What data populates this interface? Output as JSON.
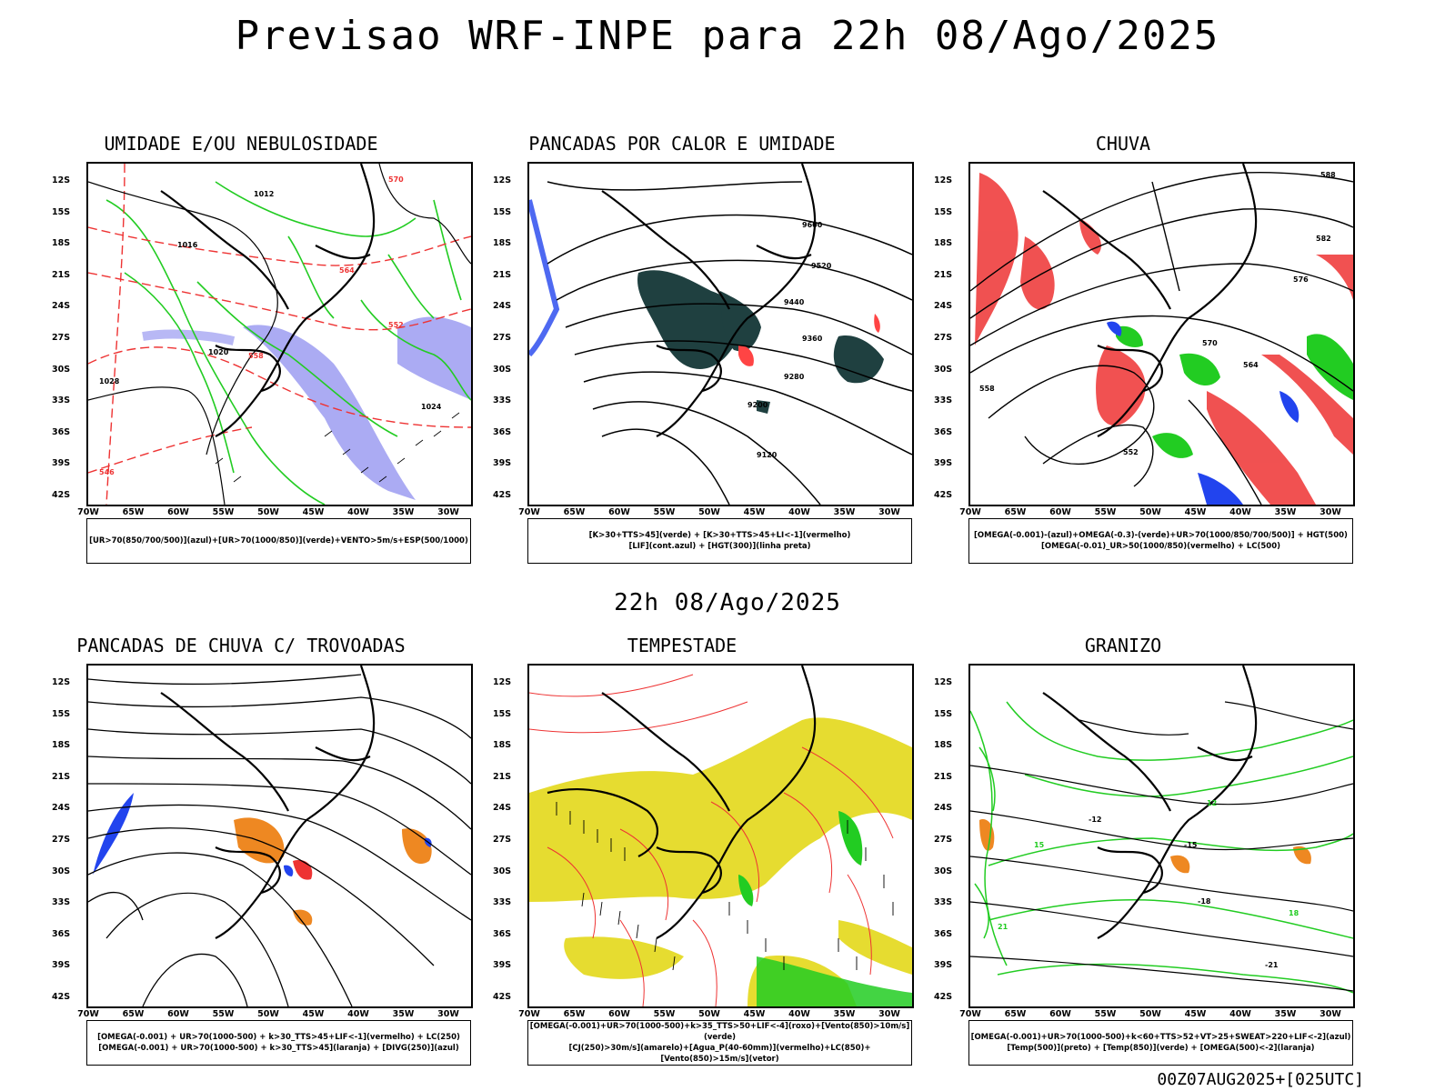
{
  "title": "Previsao WRF-INPE  para 22h 08/Ago/2025",
  "mid_title": "22h 08/Ago/2025",
  "footer": "00Z07AUG2025+[025UTC]",
  "axes": {
    "lat_labels": [
      "12S",
      "15S",
      "18S",
      "21S",
      "24S",
      "27S",
      "30S",
      "33S",
      "36S",
      "39S",
      "42S"
    ],
    "lon_labels": [
      "70W",
      "65W",
      "60W",
      "55W",
      "50W",
      "45W",
      "40W",
      "35W",
      "30W"
    ]
  },
  "panels": [
    {
      "title": "UMIDADE E/OU NEBULOSIDADE",
      "caption": [
        "[UR>70(850/700/500)](azul)+[UR>70(1000/850)](verde)+VENTO>5m/s+ESP(500/1000)"
      ],
      "contour_labels": [
        "1012",
        "1016",
        "1020",
        "1024",
        "1028",
        "570",
        "564",
        "558",
        "552",
        "546"
      ],
      "colors": {
        "fill": "#8888ee",
        "line": "#22cc22",
        "thickness": "#ee3333"
      }
    },
    {
      "title": "PANCADAS POR CALOR E UMIDADE",
      "caption": [
        "[K>30+TTS>45](verde) + [K>30+TTS>45+LI<-1](vermelho)",
        "[LIF](cont.azul) + [HGT(300)](linha preta)"
      ],
      "contour_labels": [
        "9600",
        "9520",
        "9440",
        "9360",
        "9280",
        "9200",
        "9120"
      ],
      "colors": {
        "fill": "#1f4040",
        "alert": "#ff4444",
        "line": "#2244ee"
      }
    },
    {
      "title": "CHUVA",
      "caption": [
        "[OMEGA(-0.001)-(azul)+OMEGA(-0.3)-(verde)+UR>70(1000/850/700/500)] + HGT(500)",
        "[OMEGA(-0.01)_UR>50(1000/850)(vermelho) + LC(500)"
      ],
      "contour_labels": [
        "588",
        "582",
        "576",
        "570",
        "564",
        "558",
        "552"
      ],
      "colors": {
        "red": "#ee3333",
        "green": "#22cc22",
        "blue": "#2244ee"
      }
    },
    {
      "title": "PANCADAS DE CHUVA C/ TROVOADAS",
      "caption": [
        "[OMEGA(-0.001) + UR>70(1000-500) + k>30_TTS>45+LIF<-1](vermelho) + LC(250)",
        "[OMEGA(-0.001) + UR>70(1000-500) + k>30_TTS>45](laranja) + [DIVG(250)](azul)"
      ],
      "contour_labels": [],
      "colors": {
        "orange": "#ee8822",
        "red": "#ee3333",
        "blue": "#2244ee"
      }
    },
    {
      "title": "TEMPESTADE",
      "caption": [
        "[OMEGA(-0.001)+UR>70(1000-500)+k>35_TTS>50+LIF<-4](roxo)+[Vento(850)>10m/s](verde)",
        "[CJ(250)>30m/s](amarelo)+[Agua_P(40-60mm)](vermelho)+LC(850)+[Vento(850)>15m/s](vetor)"
      ],
      "contour_labels": [],
      "colors": {
        "yellow": "#e6dc30",
        "green": "#22cc22",
        "red": "#ee3333"
      }
    },
    {
      "title": "GRANIZO",
      "caption": [
        "[OMEGA(-0.001)+UR>70(1000-500)+k<60+TTS>52+VT>25+SWEAT>220+LIF<-2](azul)",
        "[Temp(500)](preto) + [Temp(850)](verde) + [OMEGA(500)<-2](laranja)"
      ],
      "contour_labels": [
        "-12",
        "-15",
        "-18",
        "-21",
        "12",
        "15",
        "18",
        "21"
      ],
      "colors": {
        "green": "#22cc22",
        "orange": "#ee8822"
      }
    }
  ]
}
